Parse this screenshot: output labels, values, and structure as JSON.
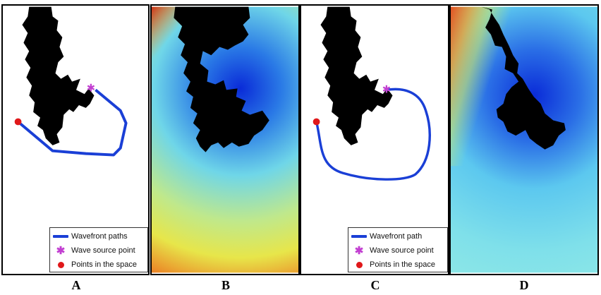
{
  "panels": [
    {
      "letter": "A",
      "kind": "paths",
      "legend": {
        "path_label": "Wavefront paths",
        "source_label": "Wave source point",
        "points_label": "Points in the space"
      }
    },
    {
      "letter": "B",
      "kind": "heatmap"
    },
    {
      "letter": "C",
      "kind": "paths",
      "legend": {
        "path_label": "Wavefront path",
        "source_label": "Wave source point",
        "points_label": "Points in the space"
      }
    },
    {
      "letter": "D",
      "kind": "heatmap"
    }
  ],
  "colors": {
    "obstacle": "#000000",
    "path": "#1a3fd6",
    "source": "#c23fd1",
    "point": "#e0181a",
    "heat_low": "#0a2bd8",
    "heat_mid": "#6fd6e8",
    "heat_high": "#e7e64a",
    "heat_max": "#d02a10"
  },
  "icons": {
    "source_marker": "asterisk-star-icon",
    "point_marker": "red-dot-icon",
    "path_marker": "blue-line-icon"
  }
}
